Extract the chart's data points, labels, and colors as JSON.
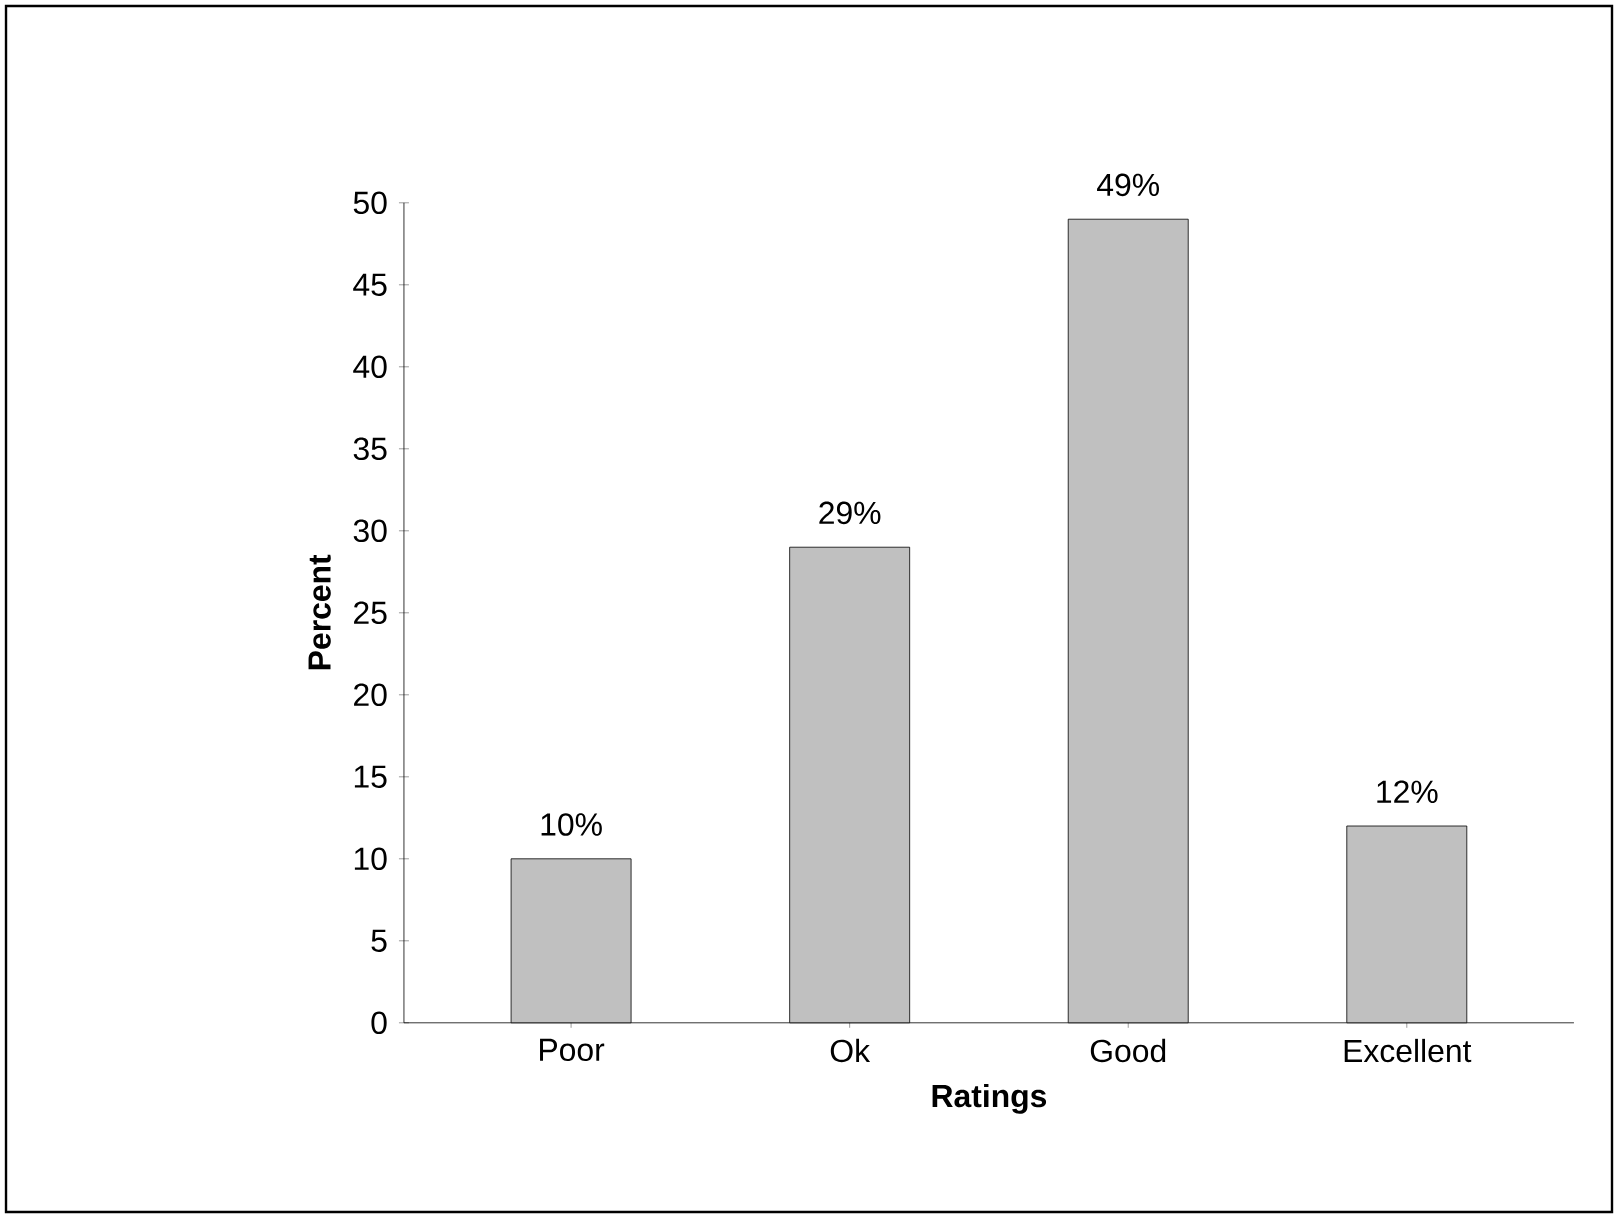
{
  "chart_data": {
    "type": "bar",
    "xlabel": "Ratings",
    "ylabel": "Percent",
    "categories": [
      "Poor",
      "Ok",
      "Good",
      "Excellent"
    ],
    "values": [
      10,
      29,
      49,
      12
    ],
    "value_labels": [
      "10%",
      "29%",
      "49%",
      "12%"
    ],
    "color": "#c0c0c0",
    "ylim": [
      0,
      50
    ],
    "yticks": [
      0,
      5,
      10,
      15,
      20,
      25,
      30,
      35,
      40,
      45,
      50
    ],
    "grid": false
  }
}
